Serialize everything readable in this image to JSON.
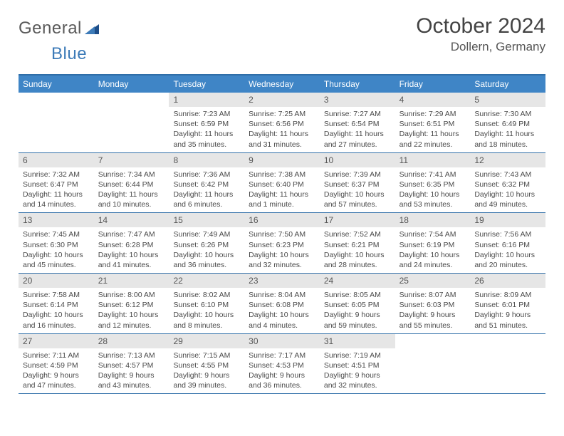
{
  "brand": {
    "general": "General",
    "blue": "Blue"
  },
  "title": {
    "month": "October 2024",
    "location": "Dollern, Germany"
  },
  "colors": {
    "header_bg": "#3f85c6",
    "border": "#2f6ea8",
    "daynum_bg": "#e6e6e6",
    "text": "#4a4a4a",
    "brand_gray": "#5a5a5a",
    "brand_blue": "#3d7bb8"
  },
  "weekdays": [
    "Sunday",
    "Monday",
    "Tuesday",
    "Wednesday",
    "Thursday",
    "Friday",
    "Saturday"
  ],
  "weeks": [
    [
      {
        "n": "",
        "sr": "",
        "ss": "",
        "dl": ""
      },
      {
        "n": "",
        "sr": "",
        "ss": "",
        "dl": ""
      },
      {
        "n": "1",
        "sr": "Sunrise: 7:23 AM",
        "ss": "Sunset: 6:59 PM",
        "dl": "Daylight: 11 hours and 35 minutes."
      },
      {
        "n": "2",
        "sr": "Sunrise: 7:25 AM",
        "ss": "Sunset: 6:56 PM",
        "dl": "Daylight: 11 hours and 31 minutes."
      },
      {
        "n": "3",
        "sr": "Sunrise: 7:27 AM",
        "ss": "Sunset: 6:54 PM",
        "dl": "Daylight: 11 hours and 27 minutes."
      },
      {
        "n": "4",
        "sr": "Sunrise: 7:29 AM",
        "ss": "Sunset: 6:51 PM",
        "dl": "Daylight: 11 hours and 22 minutes."
      },
      {
        "n": "5",
        "sr": "Sunrise: 7:30 AM",
        "ss": "Sunset: 6:49 PM",
        "dl": "Daylight: 11 hours and 18 minutes."
      }
    ],
    [
      {
        "n": "6",
        "sr": "Sunrise: 7:32 AM",
        "ss": "Sunset: 6:47 PM",
        "dl": "Daylight: 11 hours and 14 minutes."
      },
      {
        "n": "7",
        "sr": "Sunrise: 7:34 AM",
        "ss": "Sunset: 6:44 PM",
        "dl": "Daylight: 11 hours and 10 minutes."
      },
      {
        "n": "8",
        "sr": "Sunrise: 7:36 AM",
        "ss": "Sunset: 6:42 PM",
        "dl": "Daylight: 11 hours and 6 minutes."
      },
      {
        "n": "9",
        "sr": "Sunrise: 7:38 AM",
        "ss": "Sunset: 6:40 PM",
        "dl": "Daylight: 11 hours and 1 minute."
      },
      {
        "n": "10",
        "sr": "Sunrise: 7:39 AM",
        "ss": "Sunset: 6:37 PM",
        "dl": "Daylight: 10 hours and 57 minutes."
      },
      {
        "n": "11",
        "sr": "Sunrise: 7:41 AM",
        "ss": "Sunset: 6:35 PM",
        "dl": "Daylight: 10 hours and 53 minutes."
      },
      {
        "n": "12",
        "sr": "Sunrise: 7:43 AM",
        "ss": "Sunset: 6:32 PM",
        "dl": "Daylight: 10 hours and 49 minutes."
      }
    ],
    [
      {
        "n": "13",
        "sr": "Sunrise: 7:45 AM",
        "ss": "Sunset: 6:30 PM",
        "dl": "Daylight: 10 hours and 45 minutes."
      },
      {
        "n": "14",
        "sr": "Sunrise: 7:47 AM",
        "ss": "Sunset: 6:28 PM",
        "dl": "Daylight: 10 hours and 41 minutes."
      },
      {
        "n": "15",
        "sr": "Sunrise: 7:49 AM",
        "ss": "Sunset: 6:26 PM",
        "dl": "Daylight: 10 hours and 36 minutes."
      },
      {
        "n": "16",
        "sr": "Sunrise: 7:50 AM",
        "ss": "Sunset: 6:23 PM",
        "dl": "Daylight: 10 hours and 32 minutes."
      },
      {
        "n": "17",
        "sr": "Sunrise: 7:52 AM",
        "ss": "Sunset: 6:21 PM",
        "dl": "Daylight: 10 hours and 28 minutes."
      },
      {
        "n": "18",
        "sr": "Sunrise: 7:54 AM",
        "ss": "Sunset: 6:19 PM",
        "dl": "Daylight: 10 hours and 24 minutes."
      },
      {
        "n": "19",
        "sr": "Sunrise: 7:56 AM",
        "ss": "Sunset: 6:16 PM",
        "dl": "Daylight: 10 hours and 20 minutes."
      }
    ],
    [
      {
        "n": "20",
        "sr": "Sunrise: 7:58 AM",
        "ss": "Sunset: 6:14 PM",
        "dl": "Daylight: 10 hours and 16 minutes."
      },
      {
        "n": "21",
        "sr": "Sunrise: 8:00 AM",
        "ss": "Sunset: 6:12 PM",
        "dl": "Daylight: 10 hours and 12 minutes."
      },
      {
        "n": "22",
        "sr": "Sunrise: 8:02 AM",
        "ss": "Sunset: 6:10 PM",
        "dl": "Daylight: 10 hours and 8 minutes."
      },
      {
        "n": "23",
        "sr": "Sunrise: 8:04 AM",
        "ss": "Sunset: 6:08 PM",
        "dl": "Daylight: 10 hours and 4 minutes."
      },
      {
        "n": "24",
        "sr": "Sunrise: 8:05 AM",
        "ss": "Sunset: 6:05 PM",
        "dl": "Daylight: 9 hours and 59 minutes."
      },
      {
        "n": "25",
        "sr": "Sunrise: 8:07 AM",
        "ss": "Sunset: 6:03 PM",
        "dl": "Daylight: 9 hours and 55 minutes."
      },
      {
        "n": "26",
        "sr": "Sunrise: 8:09 AM",
        "ss": "Sunset: 6:01 PM",
        "dl": "Daylight: 9 hours and 51 minutes."
      }
    ],
    [
      {
        "n": "27",
        "sr": "Sunrise: 7:11 AM",
        "ss": "Sunset: 4:59 PM",
        "dl": "Daylight: 9 hours and 47 minutes."
      },
      {
        "n": "28",
        "sr": "Sunrise: 7:13 AM",
        "ss": "Sunset: 4:57 PM",
        "dl": "Daylight: 9 hours and 43 minutes."
      },
      {
        "n": "29",
        "sr": "Sunrise: 7:15 AM",
        "ss": "Sunset: 4:55 PM",
        "dl": "Daylight: 9 hours and 39 minutes."
      },
      {
        "n": "30",
        "sr": "Sunrise: 7:17 AM",
        "ss": "Sunset: 4:53 PM",
        "dl": "Daylight: 9 hours and 36 minutes."
      },
      {
        "n": "31",
        "sr": "Sunrise: 7:19 AM",
        "ss": "Sunset: 4:51 PM",
        "dl": "Daylight: 9 hours and 32 minutes."
      },
      {
        "n": "",
        "sr": "",
        "ss": "",
        "dl": ""
      },
      {
        "n": "",
        "sr": "",
        "ss": "",
        "dl": ""
      }
    ]
  ]
}
